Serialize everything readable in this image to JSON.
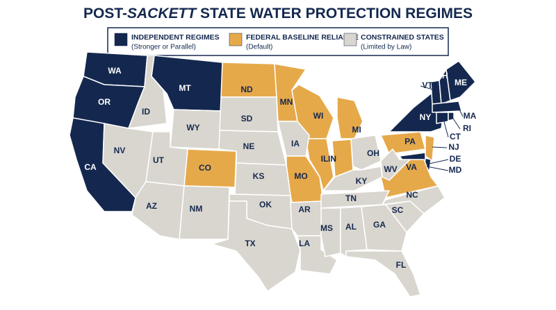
{
  "header": {
    "title_prefix": "POST-",
    "title_emphasis": "SACKETT",
    "title_suffix": " STATE WATER PROTECTION REGIMES"
  },
  "legend": {
    "items": [
      {
        "title": "INDEPENDENT REGIMES",
        "subtitle": "(Stronger or Parallel)",
        "color": "#14284f",
        "label_color": "#ffffff",
        "states": [
          "WA",
          "OR",
          "CA",
          "MT",
          "NY",
          "VT",
          "NH",
          "ME",
          "MA",
          "CT",
          "RI",
          "MD",
          "DE"
        ]
      },
      {
        "title": "FEDERAL BASELINE RELIANCE",
        "subtitle": "(Default)",
        "color": "#e6a94a",
        "label_color": "#14284f",
        "states": [
          "ND",
          "MN",
          "WI",
          "MI",
          "IL",
          "IN",
          "MO",
          "CO",
          "PA",
          "NJ",
          "VA"
        ]
      },
      {
        "title": "CONSTRAINED STATES",
        "subtitle": "(Limited by Law)",
        "color": "#d9d6cf",
        "label_color": "#14284f",
        "states": [
          "ID",
          "NV",
          "UT",
          "WY",
          "SD",
          "NE",
          "KS",
          "AZ",
          "NM",
          "OK",
          "TX",
          "IA",
          "AR",
          "LA",
          "MS",
          "AL",
          "GA",
          "FL",
          "SC",
          "NC",
          "TN",
          "KY",
          "OH",
          "WV"
        ]
      }
    ]
  }
}
